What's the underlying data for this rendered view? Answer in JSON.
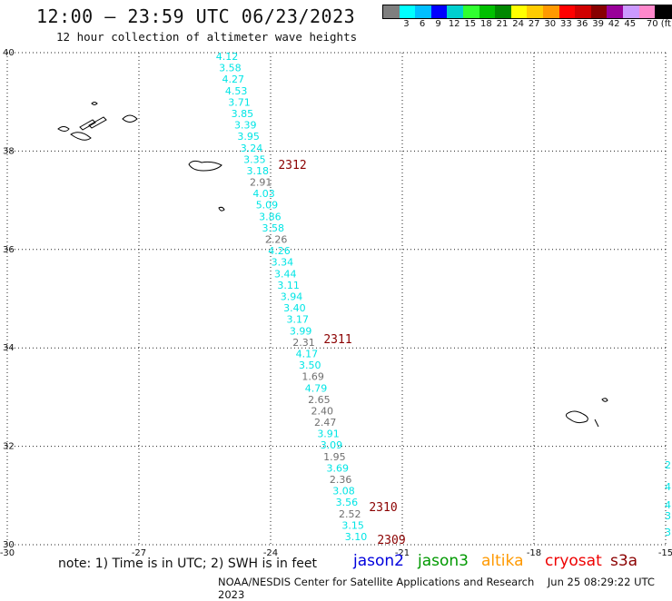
{
  "header": {
    "title": "12:00 — 23:59 UTC 06/23/2023",
    "subtitle": "12 hour collection of altimeter wave heights"
  },
  "colorbar": {
    "colors": [
      "#7f7f7f",
      "#00ffff",
      "#00bfff",
      "#0000ff",
      "#00cfcf",
      "#30ff30",
      "#00c000",
      "#008800",
      "#ffff00",
      "#ffcc00",
      "#ff9900",
      "#ff0000",
      "#d00000",
      "#880000",
      "#990099",
      "#cc99ff",
      "#ff88cc",
      "#000000"
    ],
    "labels": [
      "3",
      "6",
      "9",
      "12",
      "15",
      "18",
      "21",
      "24",
      "27",
      "30",
      "33",
      "36",
      "39",
      "42",
      "45",
      "70 (ft)"
    ]
  },
  "map": {
    "lon_range": [
      -30,
      -15
    ],
    "lat_range": [
      30,
      40
    ],
    "lon_ticks": [
      "-30",
      "-27",
      "-24",
      "-21",
      "-18",
      "-15"
    ],
    "lat_ticks": [
      "40",
      "38",
      "36",
      "34",
      "32",
      "30"
    ],
    "grid": "dotted"
  },
  "track": {
    "points": [
      {
        "text": "4.12",
        "color": "#00e5e5"
      },
      {
        "text": "3.58",
        "color": "#00e5e5"
      },
      {
        "text": "4.27",
        "color": "#00e5e5"
      },
      {
        "text": "4.53",
        "color": "#00e5e5"
      },
      {
        "text": "3.71",
        "color": "#00e5e5"
      },
      {
        "text": "3.85",
        "color": "#00e5e5"
      },
      {
        "text": "3.39",
        "color": "#00e5e5"
      },
      {
        "text": "3.95",
        "color": "#00e5e5"
      },
      {
        "text": "3.24",
        "color": "#00e5e5"
      },
      {
        "text": "3.35",
        "color": "#00e5e5"
      },
      {
        "text": "3.18",
        "color": "#00e5e5"
      },
      {
        "text": "2.91",
        "color": "#6f6f6f"
      },
      {
        "text": "4.03",
        "color": "#00e5e5"
      },
      {
        "text": "5.09",
        "color": "#00e5e5"
      },
      {
        "text": "3.86",
        "color": "#00e5e5"
      },
      {
        "text": "3.58",
        "color": "#00e5e5"
      },
      {
        "text": "2.26",
        "color": "#6f6f6f"
      },
      {
        "text": "4.26",
        "color": "#00e5e5"
      },
      {
        "text": "3.34",
        "color": "#00e5e5"
      },
      {
        "text": "3.44",
        "color": "#00e5e5"
      },
      {
        "text": "3.11",
        "color": "#00e5e5"
      },
      {
        "text": "3.94",
        "color": "#00e5e5"
      },
      {
        "text": "3.40",
        "color": "#00e5e5"
      },
      {
        "text": "3.17",
        "color": "#00e5e5"
      },
      {
        "text": "3.99",
        "color": "#00e5e5"
      },
      {
        "text": "2.31",
        "color": "#6f6f6f"
      },
      {
        "text": "4.17",
        "color": "#00e5e5"
      },
      {
        "text": "3.50",
        "color": "#00e5e5"
      },
      {
        "text": "1.69",
        "color": "#6f6f6f"
      },
      {
        "text": "4.79",
        "color": "#00e5e5"
      },
      {
        "text": "2.65",
        "color": "#6f6f6f"
      },
      {
        "text": "2.40",
        "color": "#6f6f6f"
      },
      {
        "text": "2.47",
        "color": "#6f6f6f"
      },
      {
        "text": "3.91",
        "color": "#00e5e5"
      },
      {
        "text": "3.09",
        "color": "#00e5e5"
      },
      {
        "text": "1.95",
        "color": "#6f6f6f"
      },
      {
        "text": "3.69",
        "color": "#00e5e5"
      },
      {
        "text": "2.36",
        "color": "#6f6f6f"
      },
      {
        "text": "3.08",
        "color": "#00e5e5"
      },
      {
        "text": "3.56",
        "color": "#00e5e5"
      },
      {
        "text": "2.52",
        "color": "#6f6f6f"
      },
      {
        "text": "3.15",
        "color": "#00e5e5"
      },
      {
        "text": "3.10",
        "color": "#00e5e5"
      }
    ],
    "time_labels": [
      "2312",
      "2311",
      "2310",
      "2309"
    ],
    "time_label_color": "#8b0000"
  },
  "edge_partial_labels": [
    "2",
    "4",
    "4",
    "3",
    "3"
  ],
  "note": "note:  1) Time is in UTC;  2) SWH is in feet",
  "satellites": [
    {
      "name": "jason2",
      "color": "#0000dd"
    },
    {
      "name": "jason3",
      "color": "#009900"
    },
    {
      "name": "altika",
      "color": "#ff9900"
    },
    {
      "name": "cryosat",
      "color": "#ee0000"
    },
    {
      "name": "s3a",
      "color": "#8b0000"
    }
  ],
  "footer": {
    "credit": "NOAA/NESDIS Center for Satellite Applications and Research",
    "timestamp": "Jun 25 08:29:22 UTC 2023"
  }
}
